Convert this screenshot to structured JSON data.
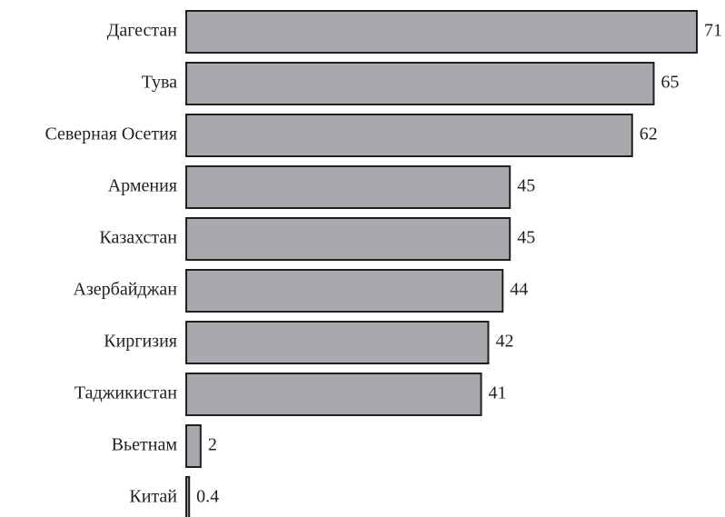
{
  "chart_data": {
    "type": "bar",
    "orientation": "horizontal",
    "categories": [
      "Дагестан",
      "Тува",
      "Северная Осетия",
      "Армения",
      "Казахстан",
      "Азербайджан",
      "Киргизия",
      "Таджикистан",
      "Вьетнам",
      "Китай"
    ],
    "values": [
      71,
      65,
      62,
      45,
      45,
      44,
      42,
      41,
      2,
      0.4
    ],
    "color": "#a7a9ac"
  }
}
